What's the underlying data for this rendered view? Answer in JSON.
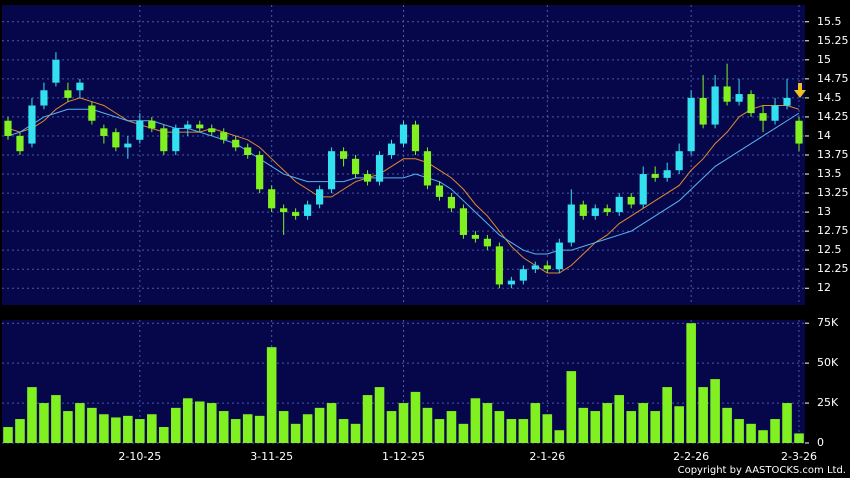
{
  "chart_data": {
    "type": "candlestick",
    "up_color": "#33e0f0",
    "down_color": "#80f020",
    "background": "#06064a",
    "grid": true,
    "categories": [
      null,
      null,
      null,
      null,
      null,
      null,
      null,
      null,
      null,
      null,
      null,
      "2-10-25",
      null,
      null,
      null,
      null,
      null,
      null,
      null,
      null,
      null,
      null,
      "3-11-25",
      null,
      null,
      null,
      null,
      null,
      null,
      null,
      null,
      null,
      null,
      "1-12-25",
      null,
      null,
      null,
      null,
      null,
      null,
      null,
      null,
      null,
      null,
      null,
      "2-1-26",
      null,
      null,
      null,
      null,
      null,
      null,
      null,
      null,
      null,
      null,
      null,
      "2-2-26",
      null,
      null,
      null,
      null,
      null,
      null,
      null,
      null,
      "2-3-26"
    ],
    "open": [
      14.2,
      14.0,
      13.9,
      14.4,
      14.7,
      14.6,
      14.6,
      14.4,
      14.1,
      14.05,
      13.85,
      13.95,
      14.2,
      14.1,
      13.8,
      14.1,
      14.15,
      14.1,
      14.05,
      13.95,
      13.85,
      13.75,
      13.3,
      13.05,
      13.0,
      12.95,
      13.1,
      13.3,
      13.8,
      13.7,
      13.5,
      13.4,
      13.75,
      13.9,
      14.15,
      13.8,
      13.35,
      13.2,
      13.05,
      12.7,
      12.65,
      12.55,
      12.05,
      12.1,
      12.25,
      12.3,
      12.25,
      12.6,
      13.1,
      12.95,
      13.05,
      13.0,
      13.2,
      13.1,
      13.5,
      13.45,
      13.55,
      13.8,
      14.5,
      14.15,
      14.65,
      14.45,
      14.55,
      14.3,
      14.2,
      14.4,
      14.2
    ],
    "high": [
      14.25,
      14.05,
      14.5,
      14.7,
      15.1,
      14.7,
      14.75,
      14.45,
      14.15,
      14.1,
      14.0,
      14.3,
      14.25,
      14.15,
      14.15,
      14.2,
      14.2,
      14.15,
      14.1,
      14.0,
      13.9,
      13.8,
      13.35,
      13.1,
      13.05,
      13.15,
      13.35,
      13.85,
      13.85,
      13.75,
      13.55,
      13.8,
      13.95,
      14.2,
      14.2,
      13.85,
      13.4,
      13.25,
      13.1,
      12.75,
      12.7,
      12.6,
      12.15,
      12.3,
      12.35,
      12.35,
      12.65,
      13.3,
      13.15,
      13.1,
      13.1,
      13.25,
      13.25,
      13.6,
      13.6,
      13.65,
      13.9,
      14.6,
      14.8,
      14.8,
      14.95,
      14.75,
      14.6,
      14.4,
      14.5,
      14.75,
      14.25
    ],
    "low": [
      13.95,
      13.75,
      13.85,
      14.35,
      14.65,
      14.45,
      14.5,
      14.15,
      13.9,
      13.8,
      13.7,
      13.9,
      14.05,
      13.75,
      13.75,
      14.0,
      14.05,
      14.0,
      13.9,
      13.8,
      13.7,
      13.25,
      13.0,
      12.7,
      12.9,
      12.9,
      13.05,
      13.25,
      13.6,
      13.45,
      13.35,
      13.35,
      13.7,
      13.85,
      13.75,
      13.3,
      13.15,
      13.0,
      12.65,
      12.6,
      12.5,
      12.0,
      12.0,
      12.05,
      12.2,
      12.2,
      12.2,
      12.55,
      12.9,
      12.9,
      12.95,
      12.95,
      13.05,
      13.05,
      13.4,
      13.4,
      13.5,
      13.75,
      14.1,
      14.1,
      14.4,
      14.4,
      14.25,
      14.05,
      14.15,
      14.35,
      13.8
    ],
    "close": [
      14.0,
      13.8,
      14.4,
      14.6,
      15.0,
      14.5,
      14.7,
      14.2,
      14.0,
      13.85,
      13.9,
      14.2,
      14.1,
      13.8,
      14.1,
      14.15,
      14.1,
      14.05,
      13.95,
      13.85,
      13.75,
      13.3,
      13.05,
      13.0,
      12.95,
      13.1,
      13.3,
      13.8,
      13.7,
      13.5,
      13.4,
      13.75,
      13.9,
      14.15,
      13.8,
      13.35,
      13.2,
      13.05,
      12.7,
      12.65,
      12.55,
      12.05,
      12.1,
      12.25,
      12.3,
      12.25,
      12.6,
      13.1,
      12.95,
      13.05,
      13.0,
      13.2,
      13.1,
      13.5,
      13.45,
      13.55,
      13.8,
      14.5,
      14.15,
      14.65,
      14.45,
      14.55,
      14.3,
      14.2,
      14.4,
      14.5,
      13.9
    ],
    "lines": [
      {
        "color": "#e08a30",
        "values": [
          14.1,
          14.05,
          14.1,
          14.2,
          14.35,
          14.45,
          14.5,
          14.45,
          14.4,
          14.3,
          14.2,
          14.15,
          14.1,
          14.05,
          14.05,
          14.05,
          14.05,
          14.1,
          14.05,
          14.0,
          13.95,
          13.85,
          13.7,
          13.55,
          13.4,
          13.3,
          13.2,
          13.2,
          13.3,
          13.4,
          13.45,
          13.5,
          13.6,
          13.7,
          13.7,
          13.65,
          13.55,
          13.45,
          13.3,
          13.1,
          12.95,
          12.75,
          12.55,
          12.4,
          12.3,
          12.2,
          12.2,
          12.3,
          12.45,
          12.6,
          12.7,
          12.85,
          12.95,
          13.05,
          13.15,
          13.25,
          13.35,
          13.55,
          13.7,
          13.9,
          14.05,
          14.25,
          14.35,
          14.4,
          14.4,
          14.4,
          14.35
        ]
      },
      {
        "color": "#5ab4f0",
        "values": [
          14.0,
          14.05,
          14.15,
          14.25,
          14.3,
          14.35,
          14.35,
          14.35,
          14.3,
          14.25,
          14.2,
          14.2,
          14.2,
          14.15,
          14.1,
          14.1,
          14.05,
          14.0,
          13.95,
          13.9,
          13.8,
          13.7,
          13.6,
          13.5,
          13.45,
          13.4,
          13.4,
          13.4,
          13.4,
          13.45,
          13.45,
          13.45,
          13.45,
          13.45,
          13.5,
          13.45,
          13.4,
          13.3,
          13.15,
          13.0,
          12.85,
          12.7,
          12.6,
          12.5,
          12.45,
          12.45,
          12.5,
          12.5,
          12.55,
          12.6,
          12.65,
          12.7,
          12.75,
          12.85,
          12.95,
          13.05,
          13.15,
          13.3,
          13.45,
          13.6,
          13.7,
          13.8,
          13.9,
          14.0,
          14.1,
          14.2,
          14.3
        ]
      }
    ],
    "ylim": [
      11.78,
      15.72
    ],
    "yticks": [
      12,
      12.25,
      12.5,
      12.75,
      13,
      13.25,
      13.5,
      13.75,
      14,
      14.25,
      14.5,
      14.75,
      15,
      15.25,
      15.5
    ],
    "volume": {
      "color": "#80f020",
      "values": [
        10000,
        15000,
        35000,
        25000,
        30000,
        20000,
        25000,
        22000,
        18000,
        16000,
        17000,
        15000,
        18000,
        10000,
        22000,
        28000,
        26000,
        25000,
        20000,
        15000,
        18000,
        17000,
        60000,
        20000,
        12000,
        18000,
        22000,
        25000,
        15000,
        12000,
        30000,
        35000,
        20000,
        25000,
        32000,
        22000,
        15000,
        20000,
        12000,
        28000,
        25000,
        20000,
        15000,
        15000,
        25000,
        18000,
        8000,
        45000,
        22000,
        20000,
        25000,
        30000,
        20000,
        25000,
        20000,
        35000,
        23000,
        75000,
        35000,
        40000,
        22000,
        15000,
        12000,
        8000,
        15000,
        25000,
        6000
      ],
      "ylim": [
        0,
        77000
      ],
      "yticks": [
        0,
        {
          "value": 25000,
          "label": "25K"
        },
        {
          "value": 50000,
          "label": "50K"
        },
        {
          "value": 75000,
          "label": "75K"
        }
      ]
    },
    "credit": "Copyright by AASTOCKS.com Ltd."
  }
}
